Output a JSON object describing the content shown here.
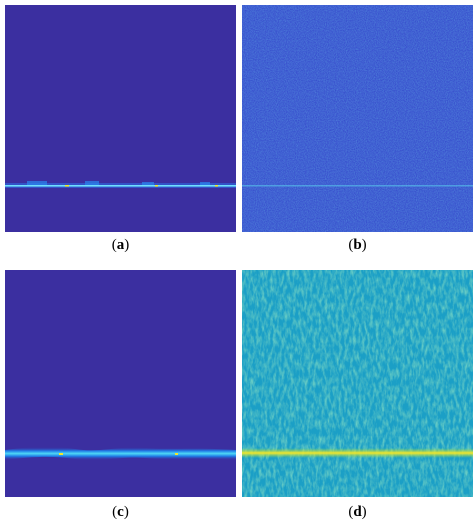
{
  "panels": [
    {
      "id": "a",
      "caption_open": "(",
      "caption_letter": "a",
      "caption_close": ")"
    },
    {
      "id": "b",
      "caption_open": "(",
      "caption_letter": "b",
      "caption_close": ")"
    },
    {
      "id": "c",
      "caption_open": "(",
      "caption_letter": "c",
      "caption_close": ")"
    },
    {
      "id": "d",
      "caption_open": "(",
      "caption_letter": "d",
      "caption_close": ")"
    }
  ],
  "colors": {
    "background_dark": "#3b2fa0",
    "noise_blue": "#2f50d8",
    "teal_background": "#1aa4c8",
    "line_cyan": "#35c3e8",
    "line_yellow": "#f5e62a"
  }
}
